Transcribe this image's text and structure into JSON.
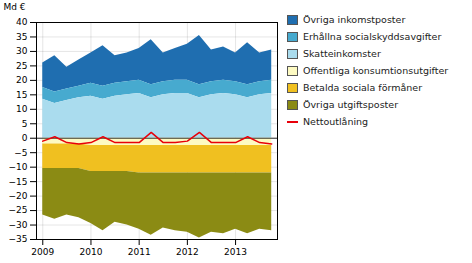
{
  "chart_data": {
    "type": "area",
    "stacked": true,
    "ylabel": "Md €",
    "x": [
      2009.0,
      2009.25,
      2009.5,
      2009.75,
      2010.0,
      2010.25,
      2010.5,
      2010.75,
      2011.0,
      2011.25,
      2011.5,
      2011.75,
      2012.0,
      2012.25,
      2012.5,
      2012.75,
      2013.0,
      2013.25,
      2013.5,
      2013.75
    ],
    "xlim": [
      2008.87,
      2013.87
    ],
    "xticks": [
      2009,
      2010,
      2011,
      2012,
      2013
    ],
    "ylim": [
      -35,
      40
    ],
    "yticks": [
      -35,
      -30,
      -25,
      -20,
      -15,
      -10,
      -5,
      0,
      5,
      10,
      15,
      20,
      25,
      30,
      35,
      40
    ],
    "grid": true,
    "legend": "right",
    "series": [
      {
        "name": "Övriga inkomstposter",
        "type": "area",
        "color": "#1F6EB0",
        "values": [
          8.5,
          12.5,
          7.5,
          9.0,
          10.5,
          14.0,
          9.5,
          10.0,
          11.0,
          15.5,
          10.0,
          11.0,
          12.5,
          17.0,
          11.0,
          11.5,
          10.0,
          14.5,
          10.0,
          10.5
        ]
      },
      {
        "name": "Erhållna socialskyddsavgifter",
        "type": "area",
        "color": "#47AACF",
        "values": [
          4.0,
          4.0,
          4.0,
          4.0,
          4.5,
          4.5,
          4.5,
          4.5,
          4.5,
          4.5,
          4.5,
          4.5,
          4.5,
          4.5,
          4.5,
          4.5,
          4.5,
          4.5,
          4.5,
          4.5
        ]
      },
      {
        "name": "Skatteinkomster",
        "type": "area",
        "color": "#AADCEE",
        "values": [
          13.5,
          12.0,
          13.0,
          14.0,
          14.5,
          13.5,
          14.5,
          15.0,
          15.5,
          14.0,
          15.0,
          15.5,
          15.5,
          14.0,
          15.0,
          15.5,
          15.0,
          14.0,
          15.0,
          15.5
        ]
      },
      {
        "name": "Offentliga konsumtionsutgifter",
        "type": "area",
        "color": "#FDFAC2",
        "values": [
          -2.0,
          -2.0,
          -2.0,
          -2.0,
          -2.5,
          -2.5,
          -2.5,
          -2.5,
          -2.5,
          -2.5,
          -2.5,
          -2.5,
          -2.5,
          -2.5,
          -2.5,
          -2.5,
          -2.5,
          -2.5,
          -2.5,
          -2.5
        ]
      },
      {
        "name": "Betalda sociala förmåner",
        "type": "area",
        "color": "#F0C020",
        "values": [
          -8.5,
          -8.5,
          -8.5,
          -8.5,
          -9.0,
          -9.0,
          -9.0,
          -9.0,
          -9.5,
          -9.5,
          -9.5,
          -9.5,
          -9.5,
          -9.5,
          -9.5,
          -9.5,
          -9.5,
          -9.5,
          -9.5,
          -9.5
        ]
      },
      {
        "name": "Övriga utgiftsposter",
        "type": "area",
        "color": "#8B8B14",
        "values": [
          -16.0,
          -17.5,
          -16.0,
          -17.0,
          -18.0,
          -20.5,
          -17.5,
          -18.5,
          -19.5,
          -21.5,
          -19.0,
          -20.0,
          -20.5,
          -22.5,
          -20.5,
          -21.0,
          -19.5,
          -21.0,
          -19.5,
          -20.0
        ]
      },
      {
        "name": "Nettoutlåning",
        "type": "line",
        "color": "#E8000A",
        "values": [
          -1.0,
          0.5,
          -1.5,
          -2.0,
          -1.5,
          0.5,
          -1.5,
          -1.5,
          -1.5,
          2.0,
          -1.5,
          -1.5,
          -1.0,
          2.0,
          -1.5,
          -1.5,
          -1.5,
          0.5,
          -1.5,
          -2.0
        ]
      }
    ]
  }
}
